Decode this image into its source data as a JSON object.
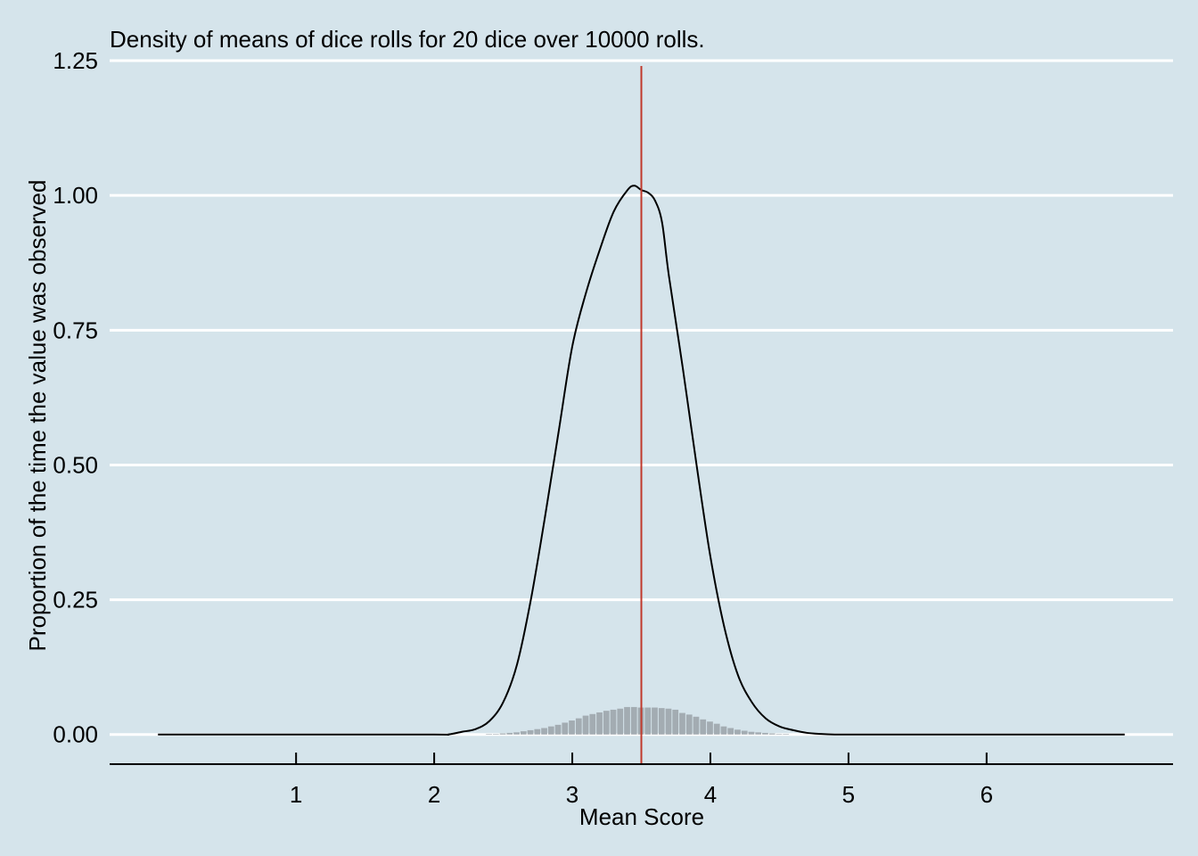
{
  "chart_data": {
    "type": "area",
    "title": "Density of means of dice rolls for 20 dice over 10000 rolls.",
    "xlabel": "Mean Score",
    "ylabel": "Proportion of the time the value was observed",
    "xlim": [
      -0.35,
      7.35
    ],
    "ylim": [
      -0.055,
      1.26
    ],
    "x_ticks": [
      1,
      2,
      3,
      4,
      5,
      6
    ],
    "x_tick_labels": [
      "1",
      "2",
      "3",
      "4",
      "5",
      "6"
    ],
    "y_ticks": [
      0,
      0.25,
      0.5,
      0.75,
      1.0,
      1.25
    ],
    "y_tick_labels": [
      "0.00",
      "0.25",
      "0.50",
      "0.75",
      "1.00",
      "1.25"
    ],
    "grid": "horizontal",
    "reference_line": {
      "x": 3.5
    },
    "series": [
      {
        "kind": "density-line",
        "x": [
          0.0,
          1.0,
          2.0,
          2.1,
          2.2,
          2.3,
          2.4,
          2.5,
          2.6,
          2.7,
          2.8,
          2.9,
          3.0,
          3.1,
          3.2,
          3.3,
          3.4,
          3.45,
          3.5,
          3.55,
          3.6,
          3.65,
          3.7,
          3.8,
          3.9,
          4.0,
          4.1,
          4.2,
          4.3,
          4.4,
          4.5,
          4.6,
          4.7,
          4.8,
          4.9,
          5.0,
          6.0,
          7.0
        ],
        "y": [
          0.0,
          0.0,
          0.0,
          0.0,
          0.005,
          0.01,
          0.025,
          0.06,
          0.13,
          0.25,
          0.4,
          0.56,
          0.72,
          0.82,
          0.9,
          0.97,
          1.01,
          1.018,
          1.01,
          1.005,
          0.99,
          0.95,
          0.85,
          0.68,
          0.5,
          0.33,
          0.2,
          0.11,
          0.06,
          0.03,
          0.015,
          0.008,
          0.003,
          0.001,
          0.0,
          0.0,
          0.0,
          0.0
        ]
      },
      {
        "kind": "histogram",
        "x": [
          2.4,
          2.45,
          2.5,
          2.55,
          2.6,
          2.65,
          2.7,
          2.75,
          2.8,
          2.85,
          2.9,
          2.95,
          3.0,
          3.05,
          3.1,
          3.15,
          3.2,
          3.25,
          3.3,
          3.35,
          3.4,
          3.45,
          3.5,
          3.55,
          3.6,
          3.65,
          3.7,
          3.75,
          3.8,
          3.85,
          3.9,
          3.95,
          4.0,
          4.05,
          4.1,
          4.15,
          4.2,
          4.25,
          4.3,
          4.35,
          4.4,
          4.45,
          4.5,
          4.55
        ],
        "y": [
          0.001,
          0.001,
          0.002,
          0.003,
          0.004,
          0.006,
          0.008,
          0.01,
          0.012,
          0.015,
          0.018,
          0.022,
          0.026,
          0.03,
          0.035,
          0.038,
          0.041,
          0.044,
          0.046,
          0.048,
          0.051,
          0.051,
          0.05,
          0.05,
          0.05,
          0.049,
          0.048,
          0.046,
          0.04,
          0.037,
          0.033,
          0.028,
          0.024,
          0.02,
          0.015,
          0.012,
          0.009,
          0.007,
          0.005,
          0.004,
          0.003,
          0.002,
          0.001,
          0.001
        ]
      }
    ],
    "colors": {
      "background": "#d5e4eb",
      "grid": "#ffffff",
      "line": "#000000",
      "histogram": "#a3acb2",
      "reference_line": "#c0392b"
    }
  }
}
